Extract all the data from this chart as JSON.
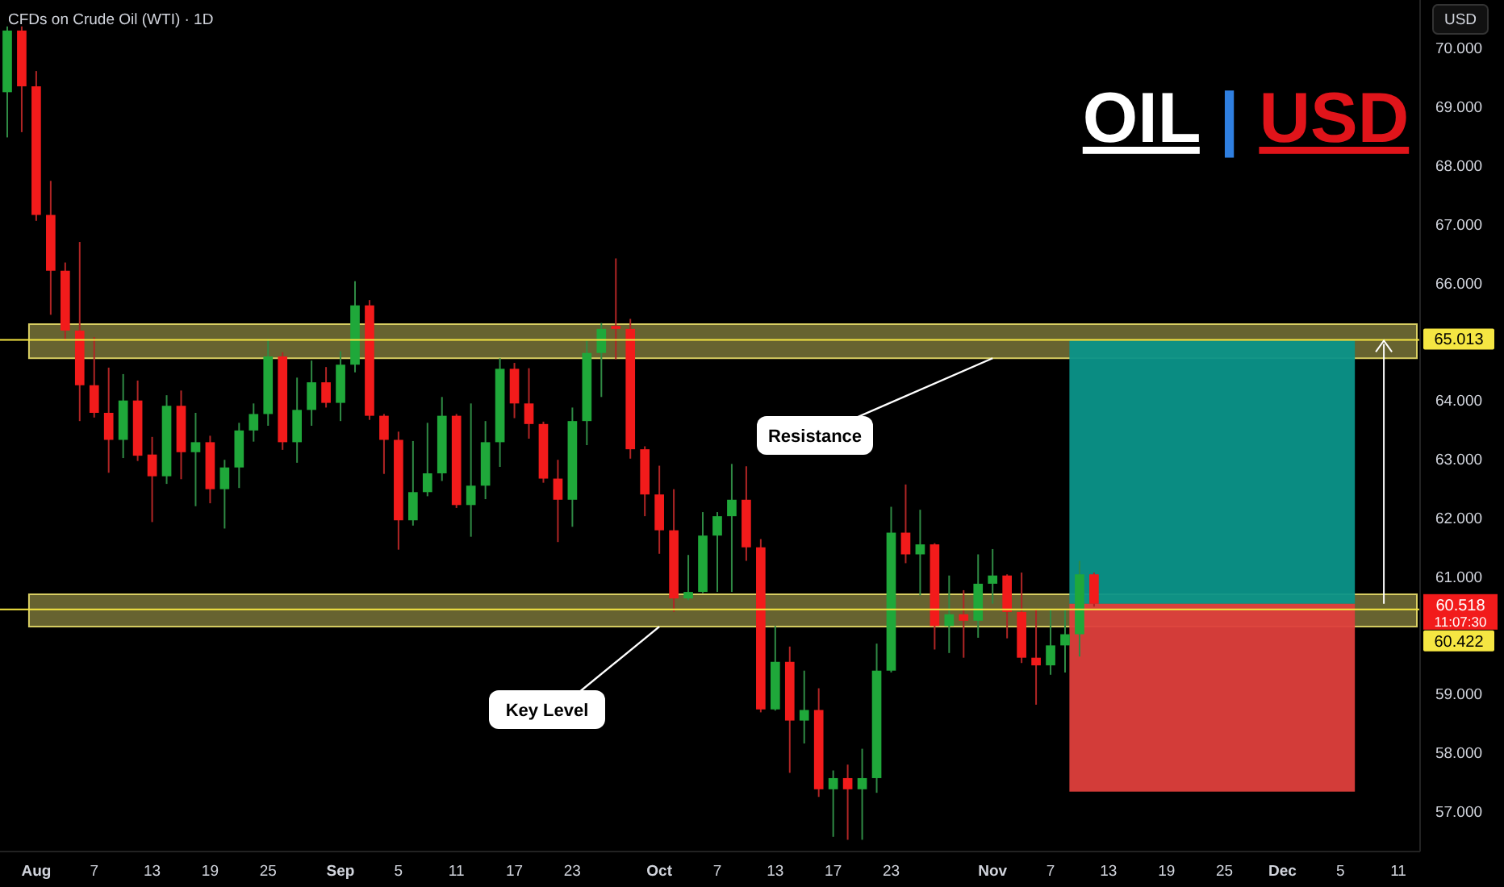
{
  "chart_data": {
    "type": "candlestick",
    "title": "OIL | USD",
    "subtitle": "CFDs on Crude Oil (WTI) · 1D",
    "ylabel": "USD",
    "categories": [
      null,
      null,
      "Aug",
      null,
      null,
      null,
      "7",
      null,
      null,
      null,
      "13",
      null,
      null,
      null,
      "19",
      null,
      null,
      null,
      "25",
      null,
      null,
      null,
      null,
      "Sep",
      null,
      null,
      null,
      "5",
      null,
      null,
      null,
      "11",
      null,
      null,
      null,
      "17",
      null,
      null,
      null,
      "23",
      null,
      null,
      null,
      null,
      null,
      "Oct",
      null,
      null,
      null,
      "7",
      null,
      null,
      null,
      "13",
      null,
      null,
      null,
      "17",
      null,
      null,
      null,
      "23",
      null,
      null,
      null,
      null,
      null,
      null,
      "Nov",
      null,
      null,
      null,
      "7",
      null,
      null,
      null,
      "13",
      null,
      null,
      null,
      "19",
      null,
      null,
      null,
      "25",
      null,
      null,
      null,
      "Dec",
      null,
      null,
      null,
      "5",
      null,
      null,
      null,
      "11",
      null
    ],
    "ohlc": [
      [
        69.23,
        70.35,
        68.46,
        70.28
      ],
      [
        70.28,
        70.35,
        68.55,
        69.33
      ],
      [
        69.33,
        69.59,
        67.04,
        67.14
      ],
      [
        67.14,
        67.72,
        65.44,
        66.19
      ],
      [
        66.19,
        66.33,
        65.0,
        65.17
      ],
      [
        65.17,
        66.68,
        63.63,
        64.24
      ],
      [
        64.24,
        65.06,
        63.69,
        63.77
      ],
      [
        63.77,
        64.54,
        62.75,
        63.31
      ],
      [
        63.31,
        64.43,
        63.0,
        63.98
      ],
      [
        63.98,
        64.32,
        62.95,
        63.04
      ],
      [
        63.06,
        63.36,
        61.91,
        62.69
      ],
      [
        62.69,
        64.07,
        62.56,
        63.89
      ],
      [
        63.89,
        64.15,
        62.64,
        63.1
      ],
      [
        63.1,
        63.77,
        62.18,
        63.27
      ],
      [
        63.27,
        63.38,
        62.23,
        62.47
      ],
      [
        62.47,
        62.97,
        61.8,
        62.84
      ],
      [
        62.84,
        63.6,
        62.49,
        63.47
      ],
      [
        63.47,
        63.93,
        63.28,
        63.75
      ],
      [
        63.75,
        65.03,
        63.55,
        64.73
      ],
      [
        64.73,
        64.8,
        63.14,
        63.27
      ],
      [
        63.27,
        64.37,
        62.92,
        63.82
      ],
      [
        63.82,
        64.66,
        63.55,
        64.29
      ],
      [
        64.29,
        64.55,
        63.86,
        63.94
      ],
      [
        63.94,
        64.82,
        63.63,
        64.59
      ],
      [
        64.59,
        66.01,
        64.46,
        65.6
      ],
      [
        65.6,
        65.69,
        63.65,
        63.72
      ],
      [
        63.72,
        63.75,
        62.73,
        63.31
      ],
      [
        63.31,
        63.45,
        61.44,
        61.94
      ],
      [
        61.94,
        63.29,
        61.85,
        62.42
      ],
      [
        62.42,
        63.6,
        62.35,
        62.74
      ],
      [
        62.74,
        64.04,
        62.61,
        63.72
      ],
      [
        63.72,
        63.75,
        62.15,
        62.2
      ],
      [
        62.2,
        63.93,
        61.66,
        62.53
      ],
      [
        62.53,
        63.63,
        62.3,
        63.27
      ],
      [
        63.27,
        64.7,
        62.85,
        64.52
      ],
      [
        64.52,
        64.62,
        63.68,
        63.93
      ],
      [
        63.93,
        64.53,
        63.33,
        63.58
      ],
      [
        63.58,
        63.62,
        62.58,
        62.65
      ],
      [
        62.65,
        62.97,
        61.57,
        62.29
      ],
      [
        62.29,
        63.86,
        61.83,
        63.63
      ],
      [
        63.63,
        65.0,
        63.22,
        64.79
      ],
      [
        64.79,
        65.3,
        64.04,
        65.2
      ],
      [
        65.25,
        66.4,
        64.68,
        65.2
      ],
      [
        65.2,
        65.37,
        62.99,
        63.15
      ],
      [
        63.15,
        63.2,
        62.01,
        62.38
      ],
      [
        62.38,
        62.87,
        61.37,
        61.77
      ],
      [
        61.77,
        62.47,
        60.38,
        60.61
      ],
      [
        60.61,
        61.35,
        60.58,
        60.72
      ],
      [
        60.72,
        62.08,
        60.7,
        61.68
      ],
      [
        61.68,
        62.08,
        60.72,
        62.01
      ],
      [
        62.01,
        62.9,
        60.72,
        62.29
      ],
      [
        62.29,
        62.86,
        61.25,
        61.48
      ],
      [
        61.48,
        61.62,
        58.67,
        58.72
      ],
      [
        58.72,
        60.14,
        58.7,
        59.53
      ],
      [
        59.53,
        59.79,
        57.64,
        58.53
      ],
      [
        58.53,
        59.38,
        58.14,
        58.71
      ],
      [
        58.71,
        59.08,
        57.23,
        57.36
      ],
      [
        57.36,
        57.68,
        56.55,
        57.55
      ],
      [
        57.55,
        57.78,
        56.5,
        57.36
      ],
      [
        57.36,
        58.05,
        56.5,
        57.55
      ],
      [
        57.55,
        59.84,
        57.3,
        59.38
      ],
      [
        59.38,
        62.17,
        59.35,
        61.73
      ],
      [
        61.73,
        62.55,
        61.21,
        61.36
      ],
      [
        61.36,
        62.12,
        60.66,
        61.53
      ],
      [
        61.53,
        61.55,
        59.74,
        60.14
      ],
      [
        60.14,
        61.0,
        59.68,
        60.34
      ],
      [
        60.34,
        60.75,
        59.6,
        60.23
      ],
      [
        60.23,
        61.36,
        59.94,
        60.86
      ],
      [
        60.86,
        61.45,
        60.52,
        61.0
      ],
      [
        61.0,
        61.02,
        59.93,
        60.38
      ],
      [
        60.38,
        61.05,
        59.51,
        59.6
      ],
      [
        59.6,
        60.43,
        58.8,
        59.47
      ],
      [
        59.47,
        60.43,
        59.31,
        59.81
      ],
      [
        59.81,
        60.43,
        59.35,
        60.0
      ],
      [
        60.0,
        61.25,
        59.62,
        61.02
      ],
      [
        61.02,
        61.05,
        60.47,
        60.518
      ],
      null,
      null,
      null,
      null,
      null,
      null,
      null,
      null,
      null,
      null,
      null,
      null,
      null,
      null,
      null,
      null,
      null,
      null,
      null,
      null,
      null,
      null
    ],
    "ylim": [
      56.3,
      70.8
    ],
    "yticks": [
      {
        "value": 57,
        "label": "57.000"
      },
      {
        "value": 58,
        "label": "58.000"
      },
      {
        "value": 59,
        "label": "59.000"
      },
      {
        "value": 61,
        "label": "61.000"
      },
      {
        "value": 62,
        "label": "62.000"
      },
      {
        "value": 63,
        "label": "63.000"
      },
      {
        "value": 64,
        "label": "64.000"
      },
      {
        "value": 66,
        "label": "66.000"
      },
      {
        "value": 67,
        "label": "67.000"
      },
      {
        "value": 68,
        "label": "68.000"
      },
      {
        "value": 69,
        "label": "69.000"
      },
      {
        "value": 70,
        "label": "70.000"
      }
    ],
    "ref_lines": [
      {
        "axis": "y",
        "value": 65.013,
        "label": "65.013",
        "color": "#f5e642"
      },
      {
        "axis": "y",
        "value": 60.422,
        "label": "60.422",
        "color": "#f5e642"
      }
    ],
    "bands": [
      {
        "axis": "y",
        "from": 64.7,
        "to": 65.28,
        "color": "#8a8440"
      },
      {
        "axis": "y",
        "from": 60.13,
        "to": 60.68,
        "color": "#8a8440"
      },
      {
        "axis": "y",
        "from": 60.518,
        "to": 65.0,
        "color": "#0b9489"
      },
      {
        "axis": "y",
        "from": 57.32,
        "to": 60.518,
        "color": "#de3f3c"
      }
    ],
    "annotations": [
      {
        "text": "Resistance",
        "x": "Nov",
        "y": 64.7
      },
      {
        "text": "Key Level",
        "x": "Oct",
        "y": 60.13
      },
      "60.518",
      "11:07:30"
    ]
  }
}
